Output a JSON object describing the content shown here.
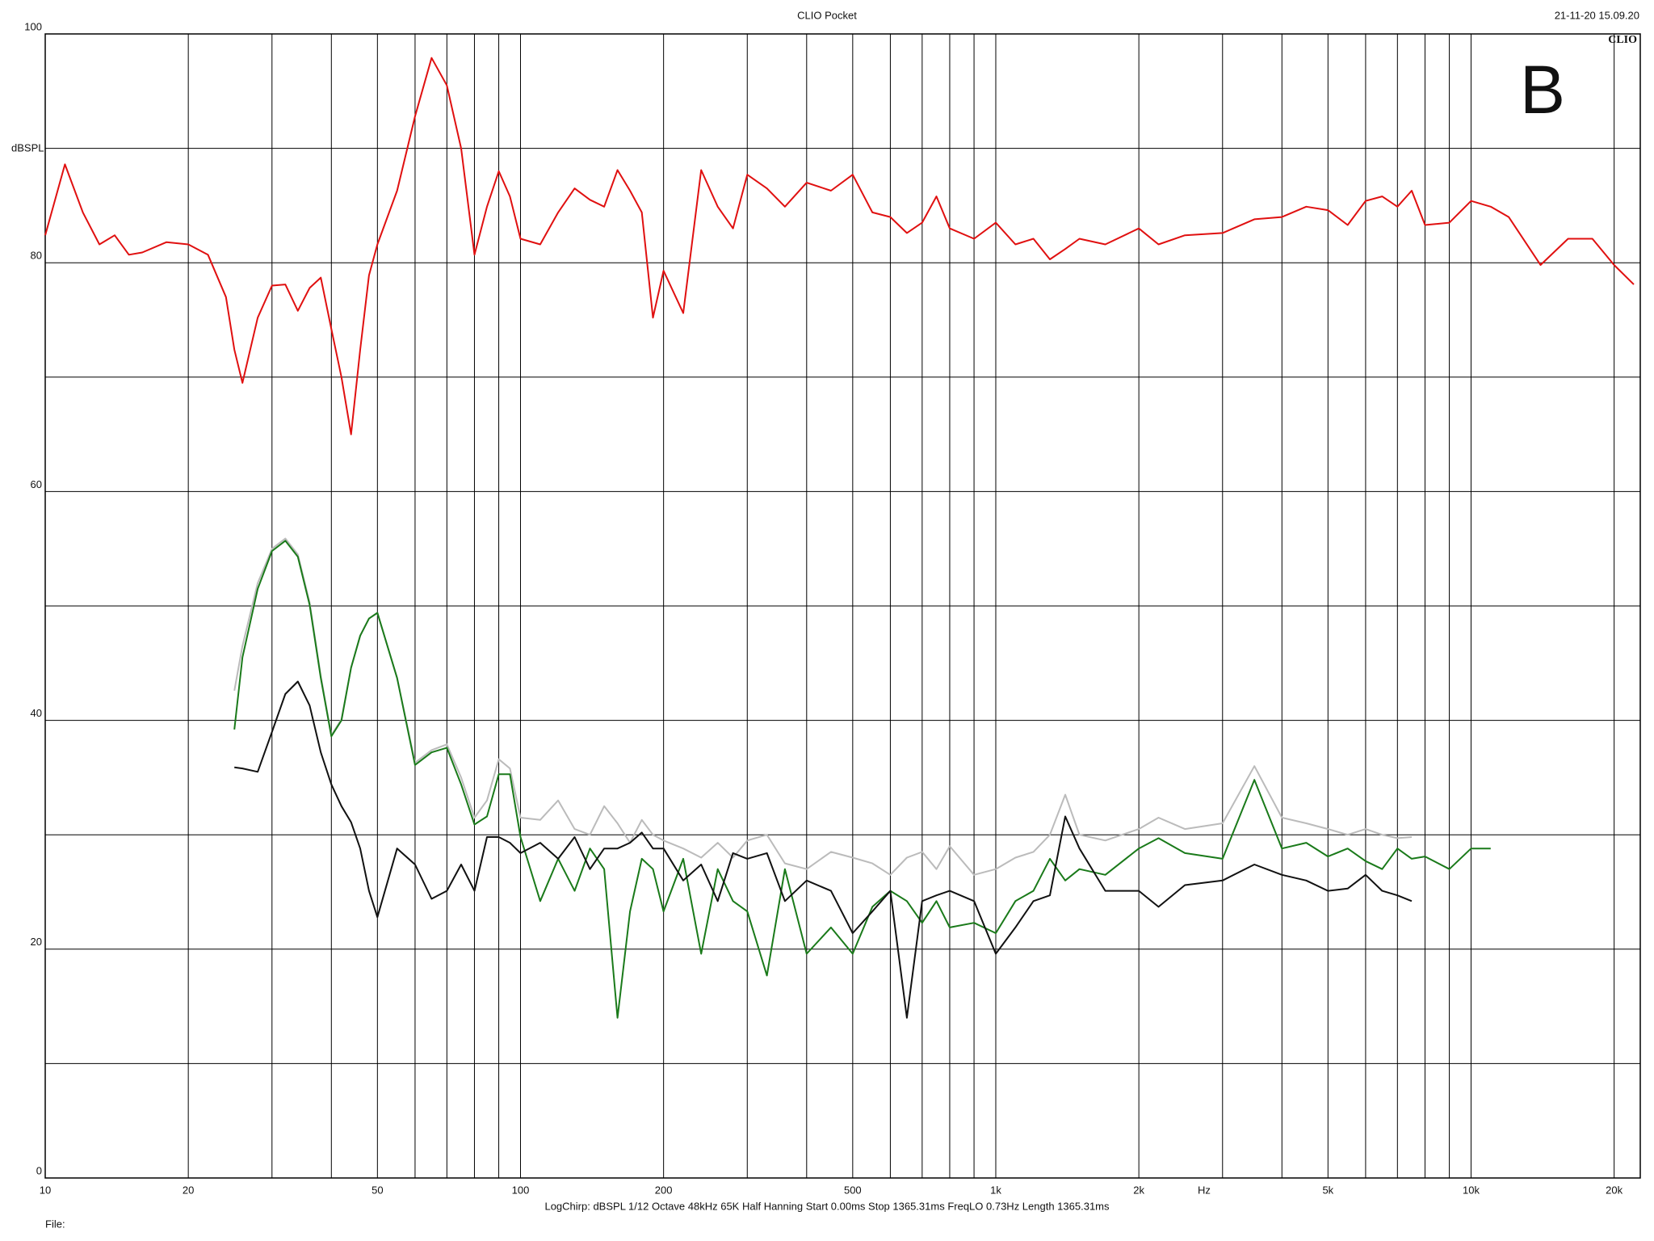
{
  "chart_data": {
    "type": "line",
    "title": "CLIO Pocket",
    "timestamp": "21-11-20 15.09.20",
    "logo": "CLIO",
    "annotation": "B",
    "y_label": "dBSPL",
    "x_label": "Hz",
    "footer": "LogChirp:  dBSPL   1/12 Octave   48kHz   65K   Half Hanning   Start 0.00ms    Stop 1365.31ms    FreqLO 0.73Hz    Length 1365.31ms",
    "file_label": "File:",
    "log_x": true,
    "grid": true,
    "xlim": [
      10,
      22700
    ],
    "ylim": [
      0,
      100
    ],
    "xticks": [
      10,
      20,
      50,
      100,
      200,
      500,
      {
        "value": 1000,
        "label": "1k"
      },
      {
        "value": 2000,
        "label": "2k"
      },
      {
        "value": 5000,
        "label": "5k"
      },
      {
        "value": 10000,
        "label": "10k"
      },
      {
        "value": 20000,
        "label": "20k"
      }
    ],
    "x_minor_grid": [
      30,
      40,
      60,
      70,
      80,
      90,
      300,
      400,
      600,
      700,
      800,
      900,
      3000,
      4000,
      6000,
      7000,
      8000,
      9000
    ],
    "yticks": [
      0,
      20,
      40,
      60,
      80,
      100
    ],
    "y_minor_grid": [
      10,
      30,
      50,
      70,
      90
    ],
    "x": [
      10,
      11,
      12,
      13,
      14,
      15,
      16,
      18,
      20,
      22,
      24,
      25,
      26,
      28,
      30,
      32,
      34,
      36,
      38,
      40,
      42,
      44,
      46,
      48,
      50,
      55,
      60,
      65,
      70,
      75,
      80,
      85,
      90,
      95,
      100,
      110,
      120,
      130,
      140,
      150,
      160,
      170,
      180,
      190,
      200,
      220,
      240,
      260,
      280,
      300,
      330,
      360,
      400,
      450,
      500,
      550,
      600,
      650,
      700,
      750,
      800,
      900,
      1000,
      1100,
      1200,
      1300,
      1400,
      1500,
      1700,
      2000,
      2200,
      2500,
      3000,
      3500,
      4000,
      4500,
      5000,
      5500,
      6000,
      6500,
      7000,
      7500,
      8000,
      9000,
      10000,
      11000,
      12000,
      14000,
      16000,
      18000,
      20000,
      22000
    ],
    "series": [
      {
        "color": "#e01010",
        "values": [
          82.4,
          88.6,
          84.4,
          81.6,
          82.4,
          80.7,
          80.9,
          81.8,
          81.6,
          80.7,
          77,
          72.4,
          69.5,
          75.2,
          78,
          78.1,
          75.8,
          77.8,
          78.7,
          74.2,
          70,
          65,
          72.4,
          78.9,
          81.6,
          86.3,
          92.8,
          97.9,
          95.5,
          90,
          80.7,
          84.9,
          88,
          85.8,
          82.1,
          81.6,
          84.4,
          86.5,
          85.5,
          84.9,
          88.1,
          86.3,
          84.4,
          75.2,
          79.3,
          75.6,
          88.1,
          84.9,
          83,
          87.7,
          86.5,
          84.9,
          87,
          86.3,
          87.7,
          84.4,
          84,
          82.6,
          83.5,
          85.8,
          83,
          82.1,
          83.5,
          81.6,
          82.1,
          80.3,
          81.2,
          82.1,
          81.6,
          83,
          81.6,
          82.4,
          82.6,
          83.8,
          84,
          84.9,
          84.6,
          83.3,
          85.4,
          85.8,
          84.9,
          86.3,
          83.3,
          83.5,
          85.4,
          84.9,
          84,
          79.8,
          82.1,
          82.1,
          79.8,
          78.1
        ]
      },
      {
        "color": "#bbbbbb",
        "values": [
          null,
          null,
          null,
          null,
          null,
          null,
          null,
          null,
          null,
          null,
          null,
          42.6,
          46.5,
          52,
          55,
          55.9,
          54.5,
          50.3,
          43.9,
          38.7,
          40.1,
          44.6,
          47.4,
          48.9,
          49.4,
          43.7,
          36.3,
          37.4,
          37.9,
          35,
          31.5,
          33,
          36.6,
          35.8,
          31.5,
          31.3,
          33,
          30.5,
          30,
          32.5,
          31,
          29.3,
          31.3,
          30,
          29.5,
          28.8,
          28,
          29.3,
          28,
          29.5,
          30,
          27.5,
          27,
          28.5,
          28,
          27.5,
          26.5,
          28,
          28.5,
          27,
          29,
          26.5,
          27,
          28,
          28.5,
          30,
          33.5,
          30,
          29.5,
          30.5,
          31.5,
          30.5,
          31,
          36,
          31.5,
          31,
          30.5,
          30,
          30.5,
          30,
          29.7,
          29.8,
          null,
          null,
          null,
          null,
          null,
          null,
          null,
          null,
          null,
          null
        ]
      },
      {
        "color": "#1a7a1a",
        "values": [
          null,
          null,
          null,
          null,
          null,
          null,
          null,
          null,
          null,
          null,
          null,
          39.2,
          45.5,
          51.5,
          54.8,
          55.7,
          54.3,
          50.1,
          43.7,
          38.6,
          40,
          44.6,
          47.4,
          48.9,
          49.4,
          43.7,
          36.1,
          37.2,
          37.6,
          34.4,
          30.9,
          31.6,
          35.3,
          35.3,
          29.8,
          24.2,
          27.9,
          25.1,
          28.8,
          27,
          14,
          23.3,
          27.9,
          27,
          23.3,
          27.9,
          19.6,
          27,
          24.2,
          23.3,
          17.7,
          27,
          19.6,
          21.9,
          19.6,
          23.7,
          25.1,
          24.2,
          22.3,
          24.2,
          21.9,
          22.3,
          21.4,
          24.2,
          25.1,
          27.9,
          26,
          27,
          26.5,
          28.8,
          29.7,
          28.4,
          27.9,
          34.8,
          28.8,
          29.3,
          28.1,
          28.8,
          27.7,
          27,
          28.8,
          27.9,
          28.1,
          27,
          28.8,
          28.8,
          null,
          null,
          null,
          null,
          null,
          null
        ]
      },
      {
        "color": "#111111",
        "values": [
          null,
          null,
          null,
          null,
          null,
          null,
          null,
          null,
          null,
          null,
          null,
          35.9,
          35.8,
          35.5,
          39,
          42.3,
          43.4,
          41.3,
          37.2,
          34.4,
          32.5,
          31.1,
          28.8,
          25.1,
          22.8,
          28.8,
          27.4,
          24.4,
          25.1,
          27.4,
          25.1,
          29.8,
          29.8,
          29.3,
          28.4,
          29.3,
          27.9,
          29.8,
          27,
          28.8,
          28.8,
          29.3,
          30.2,
          28.8,
          28.8,
          26,
          27.4,
          24.2,
          28.4,
          27.9,
          28.4,
          24.2,
          26,
          25.1,
          21.4,
          23.3,
          25.1,
          14,
          24.2,
          24.7,
          25.1,
          24.2,
          19.6,
          21.9,
          24.2,
          24.7,
          31.6,
          28.8,
          25.1,
          25.1,
          23.7,
          25.6,
          26,
          27.4,
          26.5,
          26,
          25.1,
          25.3,
          26.5,
          25.1,
          24.7,
          24.2,
          null,
          null,
          null,
          null,
          null,
          null,
          null,
          null,
          null,
          null
        ]
      }
    ]
  }
}
